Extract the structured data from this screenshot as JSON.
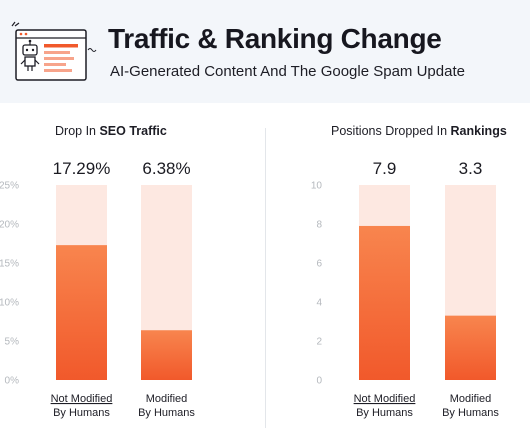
{
  "header": {
    "title": "Traffic & Ranking Change",
    "subtitle": "AI-Generated Content And The Google Spam Update"
  },
  "icons": {
    "header_icon": "robot-document-icon"
  },
  "colors": {
    "bar_top": "#f8854e",
    "bar_bottom": "#f1592b",
    "bar_track": "#fde8e1",
    "header_bg": "#f3f6fa"
  },
  "chart_data": [
    {
      "type": "bar",
      "title_prefix": "Drop In ",
      "title_bold": "SEO Traffic",
      "categories": [
        "Not Modified By Humans",
        "Modified By Humans"
      ],
      "category_lines": [
        [
          "Not Modified",
          "By Humans"
        ],
        [
          "Modified",
          "By Humans"
        ]
      ],
      "values": [
        17.29,
        6.38
      ],
      "value_labels": [
        "17.29%",
        "6.38%"
      ],
      "ylim": [
        0,
        25
      ],
      "yticks": [
        0,
        5,
        10,
        15,
        20,
        25
      ],
      "ytick_labels": [
        "0%",
        "5%",
        "10%",
        "15%",
        "20%",
        "25%"
      ],
      "grid": false
    },
    {
      "type": "bar",
      "title_prefix": "Positions Dropped In ",
      "title_bold": "Rankings",
      "categories": [
        "Not Modified By Humans",
        "Modified By Humans"
      ],
      "category_lines": [
        [
          "Not Modified",
          "By Humans"
        ],
        [
          "Modified",
          "By Humans"
        ]
      ],
      "values": [
        7.9,
        3.3
      ],
      "value_labels": [
        "7.9",
        "3.3"
      ],
      "ylim": [
        0,
        10
      ],
      "yticks": [
        0,
        2,
        4,
        6,
        8,
        10
      ],
      "ytick_labels": [
        "0",
        "2",
        "4",
        "6",
        "8",
        "10"
      ],
      "grid": false
    }
  ]
}
